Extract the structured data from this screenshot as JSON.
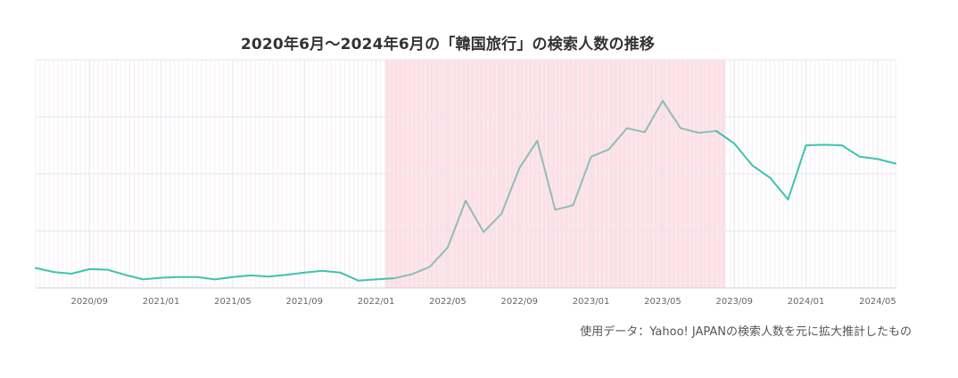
{
  "title": "2020年6月～2024年6月の「韓国旅行」の検索人数の推移",
  "source_note": "使用データ：Yahoo! JAPANの検索人数を元に拡大推計したもの",
  "colors": {
    "line_main": "#3cc4ad",
    "line_highlight": "#8fbdb5",
    "highlight_band": "#fde0e6",
    "grid": "#e6e6ee",
    "minor_grid": "#f6eef4"
  },
  "chart_data": {
    "type": "line",
    "title": "2020年6月～2024年6月の「韓国旅行」の検索人数の推移",
    "xlabel": "",
    "ylabel": "",
    "x": [
      "2020/06",
      "2020/07",
      "2020/08",
      "2020/09",
      "2020/10",
      "2020/11",
      "2020/12",
      "2021/01",
      "2021/02",
      "2021/03",
      "2021/04",
      "2021/05",
      "2021/06",
      "2021/07",
      "2021/08",
      "2021/09",
      "2021/10",
      "2021/11",
      "2021/12",
      "2022/01",
      "2022/02",
      "2022/03",
      "2022/04",
      "2022/05",
      "2022/06",
      "2022/07",
      "2022/08",
      "2022/09",
      "2022/10",
      "2022/11",
      "2022/12",
      "2023/01",
      "2023/02",
      "2023/03",
      "2023/04",
      "2023/05",
      "2023/06",
      "2023/07",
      "2023/08",
      "2023/09",
      "2023/10",
      "2023/11",
      "2023/12",
      "2024/01",
      "2024/02",
      "2024/03",
      "2024/04",
      "2024/05",
      "2024/06"
    ],
    "values": [
      0.35,
      0.28,
      0.25,
      0.33,
      0.32,
      0.23,
      0.15,
      0.18,
      0.19,
      0.19,
      0.15,
      0.19,
      0.22,
      0.2,
      0.23,
      0.27,
      0.3,
      0.27,
      0.13,
      0.15,
      0.17,
      0.24,
      0.37,
      0.71,
      1.53,
      0.98,
      1.3,
      2.1,
      2.58,
      1.37,
      1.45,
      2.3,
      2.43,
      2.8,
      2.73,
      3.28,
      2.8,
      2.72,
      2.75,
      2.53,
      2.15,
      1.93,
      1.55,
      2.5,
      2.51,
      2.5,
      2.3,
      2.26,
      2.18
    ],
    "ylim": [
      0,
      4
    ],
    "y_gridlines": [
      1,
      2,
      3,
      4
    ],
    "x_tick_labels": [
      "2020/09",
      "2021/01",
      "2021/05",
      "2021/09",
      "2022/01",
      "2022/05",
      "2022/09",
      "2023/01",
      "2023/05",
      "2023/09",
      "2024/01",
      "2024/05"
    ],
    "highlight_range": [
      "2022/02",
      "2023/08"
    ],
    "y_tick_labels_shown": false,
    "grid": true,
    "legend": "none"
  }
}
